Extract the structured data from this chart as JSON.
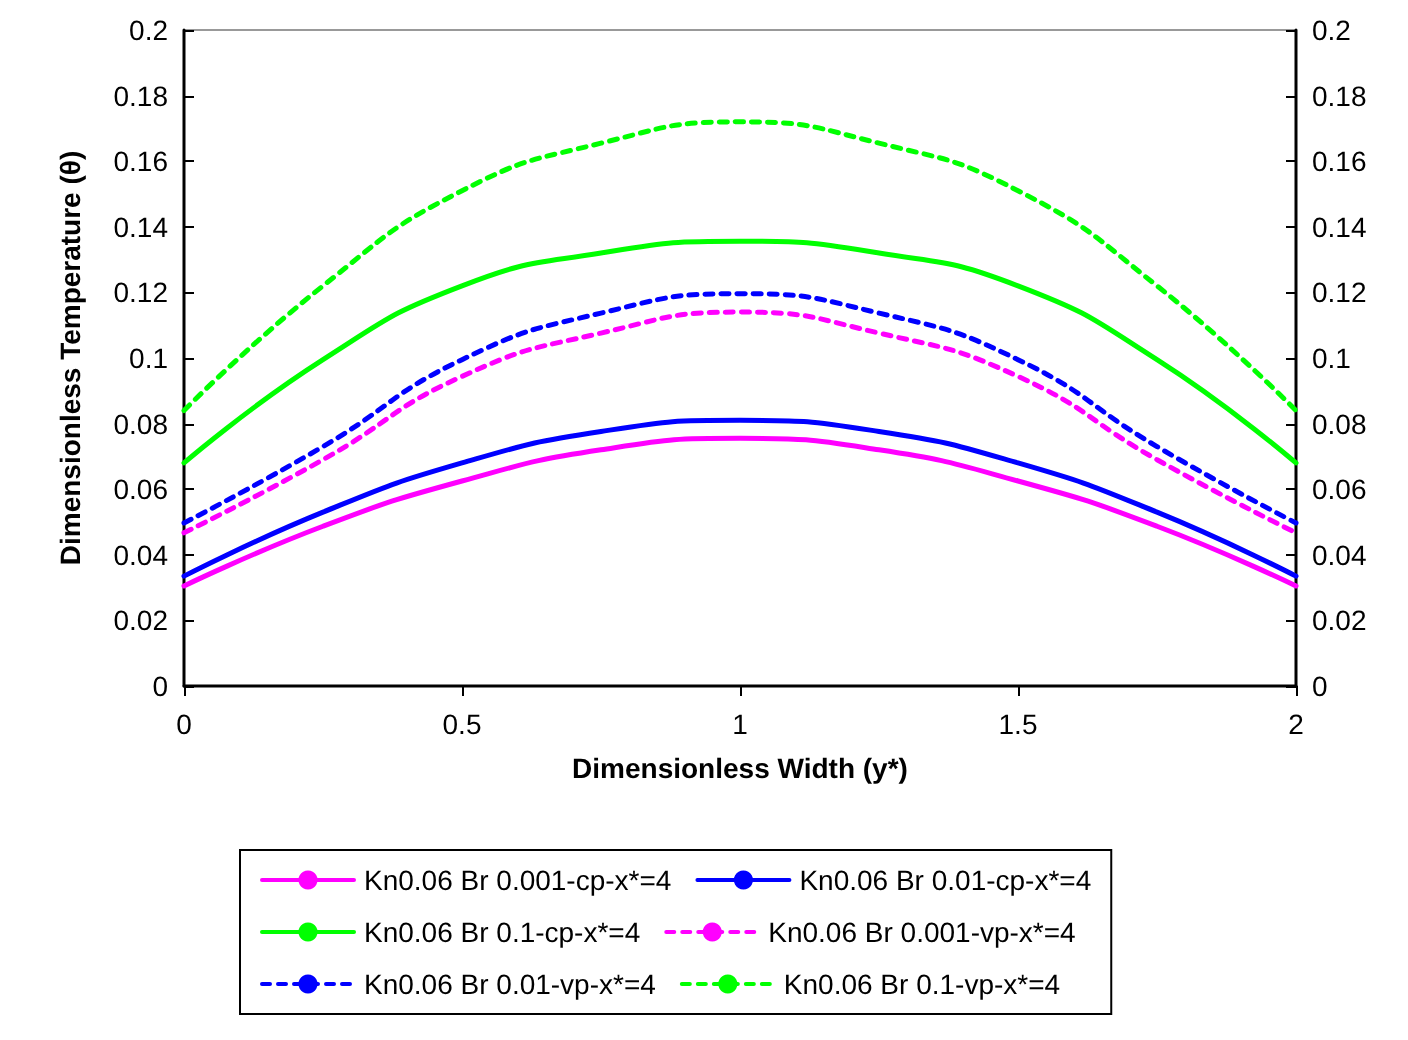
{
  "chart_data": {
    "type": "line",
    "xlabel": "Dimensionless Width (y*)",
    "ylabel": "Dimensionless Temperature (θ)",
    "x": [
      0,
      0.25,
      0.5,
      0.75,
      1,
      1.25,
      1.5,
      1.75,
      2
    ],
    "series": [
      {
        "name": "Kn0.06 Br 0.001-cp-x*=4",
        "color": "#ff00ff",
        "line_style": "solid",
        "values": [
          0.0305,
          0.0487,
          0.0625,
          0.072,
          0.0755,
          0.072,
          0.0625,
          0.0487,
          0.0305
        ]
      },
      {
        "name": "Kn0.06 Br 0.01-cp-x*=4",
        "color": "#0000ff",
        "line_style": "solid",
        "values": [
          0.0335,
          0.053,
          0.068,
          0.0776,
          0.081,
          0.0776,
          0.068,
          0.053,
          0.0335
        ]
      },
      {
        "name": "Kn0.06 Br 0.1-cp-x*=4",
        "color": "#00ff00",
        "line_style": "solid",
        "values": [
          0.068,
          0.0995,
          0.122,
          0.132,
          0.1356,
          0.132,
          0.122,
          0.0995,
          0.068
        ]
      },
      {
        "name": "Kn0.06 Br 0.001-vp-x*=4",
        "color": "#ff00ff",
        "line_style": "dashed",
        "values": [
          0.0467,
          0.069,
          0.0944,
          0.1076,
          0.114,
          0.1076,
          0.0944,
          0.069,
          0.0467
        ]
      },
      {
        "name": "Kn0.06 Br 0.01-vp-x*=4",
        "color": "#0000ff",
        "line_style": "dashed",
        "values": [
          0.0497,
          0.073,
          0.0995,
          0.1137,
          0.1196,
          0.1137,
          0.0995,
          0.073,
          0.0497
        ]
      },
      {
        "name": "Kn0.06 Br 0.1-vp-x*=4",
        "color": "#00ff00",
        "line_style": "dashed",
        "values": [
          0.084,
          0.122,
          0.151,
          0.1655,
          0.172,
          0.1655,
          0.151,
          0.122,
          0.084
        ]
      }
    ],
    "xlim": [
      0,
      2
    ],
    "xticks": [
      0,
      0.5,
      1,
      1.5,
      2
    ],
    "ylim": [
      0,
      0.2
    ],
    "yticks": [
      0,
      0.02,
      0.04,
      0.06,
      0.08,
      0.1,
      0.12,
      0.14,
      0.16,
      0.18,
      0.2
    ],
    "y2lim": [
      0,
      0.2
    ],
    "y2ticks": [
      0,
      0.02,
      0.04,
      0.06,
      0.08,
      0.1,
      0.12,
      0.14,
      0.16,
      0.18,
      0.2
    ],
    "grid": false,
    "legend": "bottom",
    "marker": "none"
  }
}
